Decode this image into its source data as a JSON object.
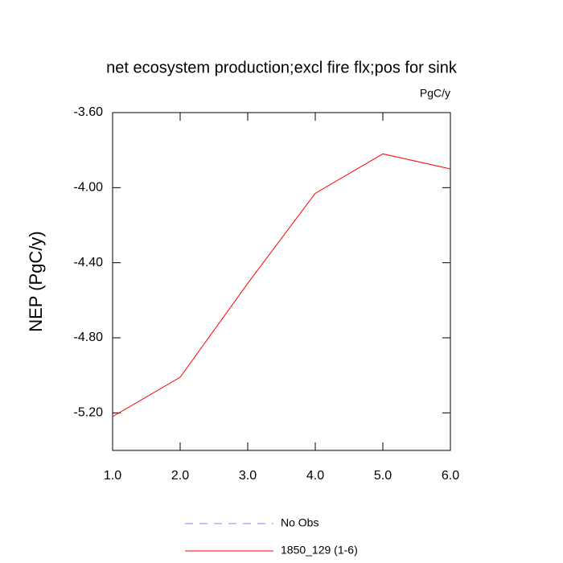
{
  "chart_data": {
    "type": "line",
    "title": "net ecosystem production;excl fire flx;pos for sink",
    "units": "PgC/y",
    "y_label": "NEP  (PgC/y)",
    "x": [
      1,
      2,
      3,
      4,
      5,
      6
    ],
    "series": [
      {
        "name": "No Obs",
        "color": "#8080ff",
        "dashed": true,
        "values": [
          null,
          null,
          null,
          null,
          null,
          null
        ]
      },
      {
        "name": "1850_129 (1-6)",
        "color": "#ff0000",
        "dashed": false,
        "values": [
          -5.22,
          -5.01,
          -4.51,
          -4.03,
          -3.82,
          -3.9
        ]
      }
    ],
    "xlim": [
      1,
      6
    ],
    "xticks": [
      {
        "value": 1,
        "label": "1.0"
      },
      {
        "value": 2,
        "label": "2.0"
      },
      {
        "value": 3,
        "label": "3.0"
      },
      {
        "value": 4,
        "label": "4.0"
      },
      {
        "value": 5,
        "label": "5.0"
      },
      {
        "value": 6,
        "label": "6.0"
      }
    ],
    "ylim": [
      -5.4,
      -3.6
    ],
    "yticks": [
      {
        "value": -3.6,
        "label": "-3.60"
      },
      {
        "value": -4.0,
        "label": "-4.00"
      },
      {
        "value": -4.4,
        "label": "-4.40"
      },
      {
        "value": -4.8,
        "label": "-4.80"
      },
      {
        "value": -5.2,
        "label": "-5.20"
      }
    ],
    "grid": false
  }
}
